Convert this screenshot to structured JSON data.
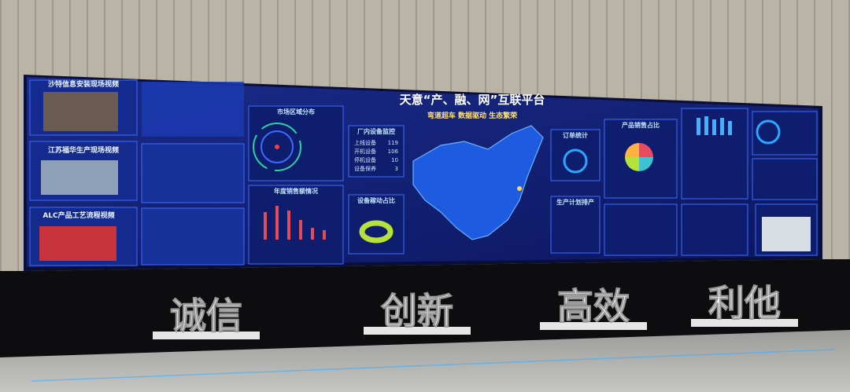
{
  "screen": {
    "title": "天意“产、融、网”互联平台",
    "slogan": "弯道超车 数据驱动 生态繁荣",
    "videos": [
      "沙特信息安装现场视频",
      "江苏福华生产现场视频",
      "ALC产品工艺流程视频"
    ],
    "panels": {
      "market": "市场区域分布",
      "sales": "年度销售额情况",
      "utilization": "设备稼动占比",
      "orders": "订单统计",
      "plan": "生产计划排产",
      "product_share": "产品销售占比"
    },
    "monitor": {
      "title": "厂内设备监控",
      "rows": [
        [
          "上线设备",
          119
        ],
        [
          "开机设备",
          106
        ],
        [
          "停机设备",
          10
        ],
        [
          "设备保养",
          3
        ]
      ]
    }
  },
  "stage": {
    "words": [
      "诚信",
      "创新",
      "高效",
      "利他"
    ]
  }
}
